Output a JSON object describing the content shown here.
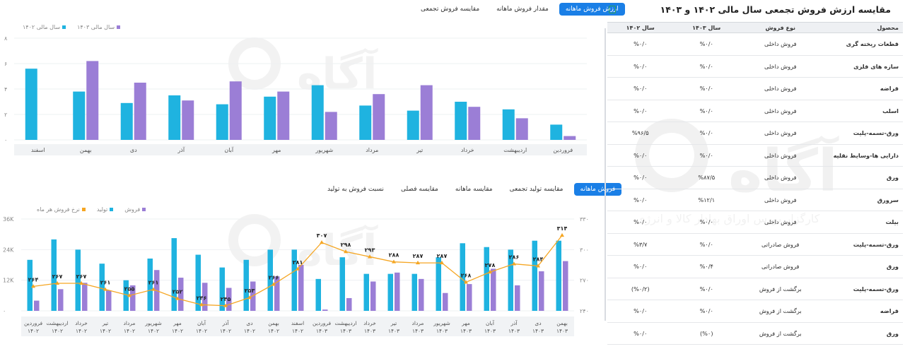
{
  "top_tabs": [
    "ارزش فروش ماهانه",
    "مقدار فروش ماهانه",
    "مقایسه فروش تجمعی"
  ],
  "top_legend": [
    {
      "label": "سال مالی ۱۴۰۳",
      "color": "#9b7ed6"
    },
    {
      "label": "سال مالی ۱۴۰۲",
      "color": "#1fb3e0"
    }
  ],
  "bottom_tabs": [
    "فروش ماهانه",
    "مقایسه تولید تجمعی",
    "مقایسه ماهانه",
    "مقایسه فصلی",
    "نسبت فروش به تولید"
  ],
  "bottom_legend": [
    {
      "label": "فروش",
      "color": "#9b7ed6"
    },
    {
      "label": "تولید",
      "color": "#1fb3e0"
    },
    {
      "label": "نرخ فروش هر ماه",
      "color": "#f5a623"
    }
  ],
  "watermark": {
    "brand": "آگاه",
    "tagline": "کارگزار بورس اوراق بهادار کالا و انرژی"
  },
  "table": {
    "title": "مقایسه ارزش فروش تجمعی سال مالی ۱۴۰۲ و ۱۴۰۳",
    "headers": [
      "محصول",
      "نوع فروش",
      "سال ۱۴۰۳",
      "سال ۱۴۰۲"
    ],
    "rows": [
      [
        "قطعات ریخته گری",
        "فروش داخلی",
        "%۰/۰",
        "%۰/۰"
      ],
      [
        "سازه های فلزی",
        "فروش داخلی",
        "%۰/۰",
        "%۰/۰"
      ],
      [
        "قراضه",
        "فروش داخلی",
        "%۰/۰",
        "%۰/۰"
      ],
      [
        "اسلب",
        "فروش داخلی",
        "%۰/۰",
        "%۰/۰"
      ],
      [
        "ورق-تسمه-پلیت",
        "فروش داخلی",
        "%۰/۰",
        "%۹۶/۵"
      ],
      [
        "دارایی ها-وسایط نقلیه",
        "فروش داخلی",
        "%۰/۰",
        "%۰/۰"
      ],
      [
        "ورق",
        "فروش داخلی",
        "%۸۷/۵",
        "%۰/۰"
      ],
      [
        "سرورق",
        "فروش داخلی",
        "%۱۲/۱",
        "%۰/۰"
      ],
      [
        "بیلت",
        "فروش داخلی",
        "%۰/۰",
        "%۰/۰"
      ],
      [
        "ورق-تسمه-پلیت",
        "فروش صادراتی",
        "%۰/۰",
        "%۳/۷"
      ],
      [
        "ورق",
        "فروش صادراتی",
        "%۰/۴",
        "%۰/۰"
      ],
      [
        "ورق-تسمه-پلیت",
        "برگشت از فروش",
        "%۰/۰",
        "(%۰/۲)"
      ],
      [
        "قراضه",
        "برگشت از فروش",
        "%۰/۰",
        "%۰/۰"
      ],
      [
        "ورق",
        "برگشت از فروش",
        "(%۰)",
        "%۰/۰"
      ]
    ]
  },
  "chart_data": [
    {
      "type": "bar",
      "categories": [
        "فروردین",
        "اردیبهشت",
        "خرداد",
        "تیر",
        "مرداد",
        "شهریور",
        "مهر",
        "آبان",
        "آذر",
        "دی",
        "بهمن",
        "اسفند"
      ],
      "ylim": [
        0,
        8
      ],
      "yticks": [
        "۰",
        "۲",
        "۴",
        "۶",
        "۸"
      ],
      "series": [
        {
          "name": "سال مالی ۱۴۰۲",
          "color": "#1fb3e0",
          "values": [
            1.2,
            2.4,
            3.0,
            2.3,
            2.7,
            4.3,
            3.4,
            2.8,
            3.5,
            2.9,
            3.8,
            5.6
          ]
        },
        {
          "name": "سال مالی ۱۴۰۳",
          "color": "#9b7ed6",
          "values": [
            0.3,
            1.7,
            2.6,
            4.3,
            3.6,
            2.2,
            3.8,
            4.6,
            3.1,
            4.5,
            6.2,
            null
          ]
        }
      ]
    },
    {
      "type": "bar",
      "categories": [
        [
          "فروردین",
          "۱۴۰۲"
        ],
        [
          "اردیبهشت",
          "۱۴۰۲"
        ],
        [
          "خرداد",
          "۱۴۰۲"
        ],
        [
          "تیر",
          "۱۴۰۲"
        ],
        [
          "مرداد",
          "۱۴۰۲"
        ],
        [
          "شهریور",
          "۱۴۰۲"
        ],
        [
          "مهر",
          "۱۴۰۲"
        ],
        [
          "آبان",
          "۱۴۰۲"
        ],
        [
          "آذر",
          "۱۴۰۲"
        ],
        [
          "دی",
          "۱۴۰۲"
        ],
        [
          "بهمن",
          "۱۴۰۲"
        ],
        [
          "اسفند",
          "۱۴۰۲"
        ],
        [
          "فروردین",
          "۱۴۰۳"
        ],
        [
          "اردیبهشت",
          "۱۴۰۳"
        ],
        [
          "خرداد",
          "۱۴۰۳"
        ],
        [
          "تیر",
          "۱۴۰۳"
        ],
        [
          "مرداد",
          "۱۴۰۳"
        ],
        [
          "شهریور",
          "۱۴۰۳"
        ],
        [
          "مهر",
          "۱۴۰۳"
        ],
        [
          "آبان",
          "۱۴۰۳"
        ],
        [
          "آذر",
          "۱۴۰۳"
        ],
        [
          "دی",
          "۱۴۰۳"
        ],
        [
          "بهمن",
          "۱۴۰۳"
        ]
      ],
      "ylim": [
        0,
        36000
      ],
      "yticks": [
        "۰",
        "12K",
        "24K",
        "36K"
      ],
      "y2lim": [
        240,
        330
      ],
      "y2ticks": [
        "۲۴۰",
        "۲۷۰",
        "۳۰۰",
        "۳۳۰"
      ],
      "series": [
        {
          "name": "تولید",
          "color": "#1fb3e0",
          "values": [
            20000,
            28000,
            24000,
            18500,
            12000,
            20500,
            28500,
            22000,
            17000,
            20000,
            24000,
            24000,
            12500,
            21000,
            14500,
            14500,
            14500,
            21000,
            26500,
            25000,
            24000,
            27500,
            27500
          ]
        },
        {
          "name": "فروش",
          "color": "#9b7ed6",
          "values": [
            4000,
            8500,
            11000,
            8000,
            10000,
            16000,
            13000,
            11000,
            9000,
            11500,
            13500,
            18000,
            500,
            5000,
            11500,
            15000,
            12500,
            7000,
            10500,
            16500,
            10000,
            15500,
            19500
          ]
        },
        {
          "name": "نرخ فروش هر ماه",
          "color": "#f5a623",
          "axis": "right",
          "values": [
            264,
            267,
            267,
            261,
            255,
            261,
            252,
            246,
            245,
            253,
            266,
            281,
            307,
            298,
            293,
            288,
            287,
            287,
            268,
            278,
            286,
            284,
            314
          ],
          "labels": [
            "۲۶۴",
            "۲۶۷",
            "۲۶۷",
            "۲۶۱",
            "۲۵۵",
            "۲۶۱",
            "۲۵۲",
            "۲۴۶",
            "۲۴۵",
            "۲۵۳",
            "۲۶۶",
            "۲۸۱",
            "۳۰۷",
            "۲۹۸",
            "۲۹۳",
            "۲۸۸",
            "۲۸۷",
            "۲۸۷",
            "۲۶۸",
            "۲۷۸",
            "۲۸۶",
            "۲۸۴",
            "۳۱۴"
          ]
        }
      ]
    }
  ]
}
